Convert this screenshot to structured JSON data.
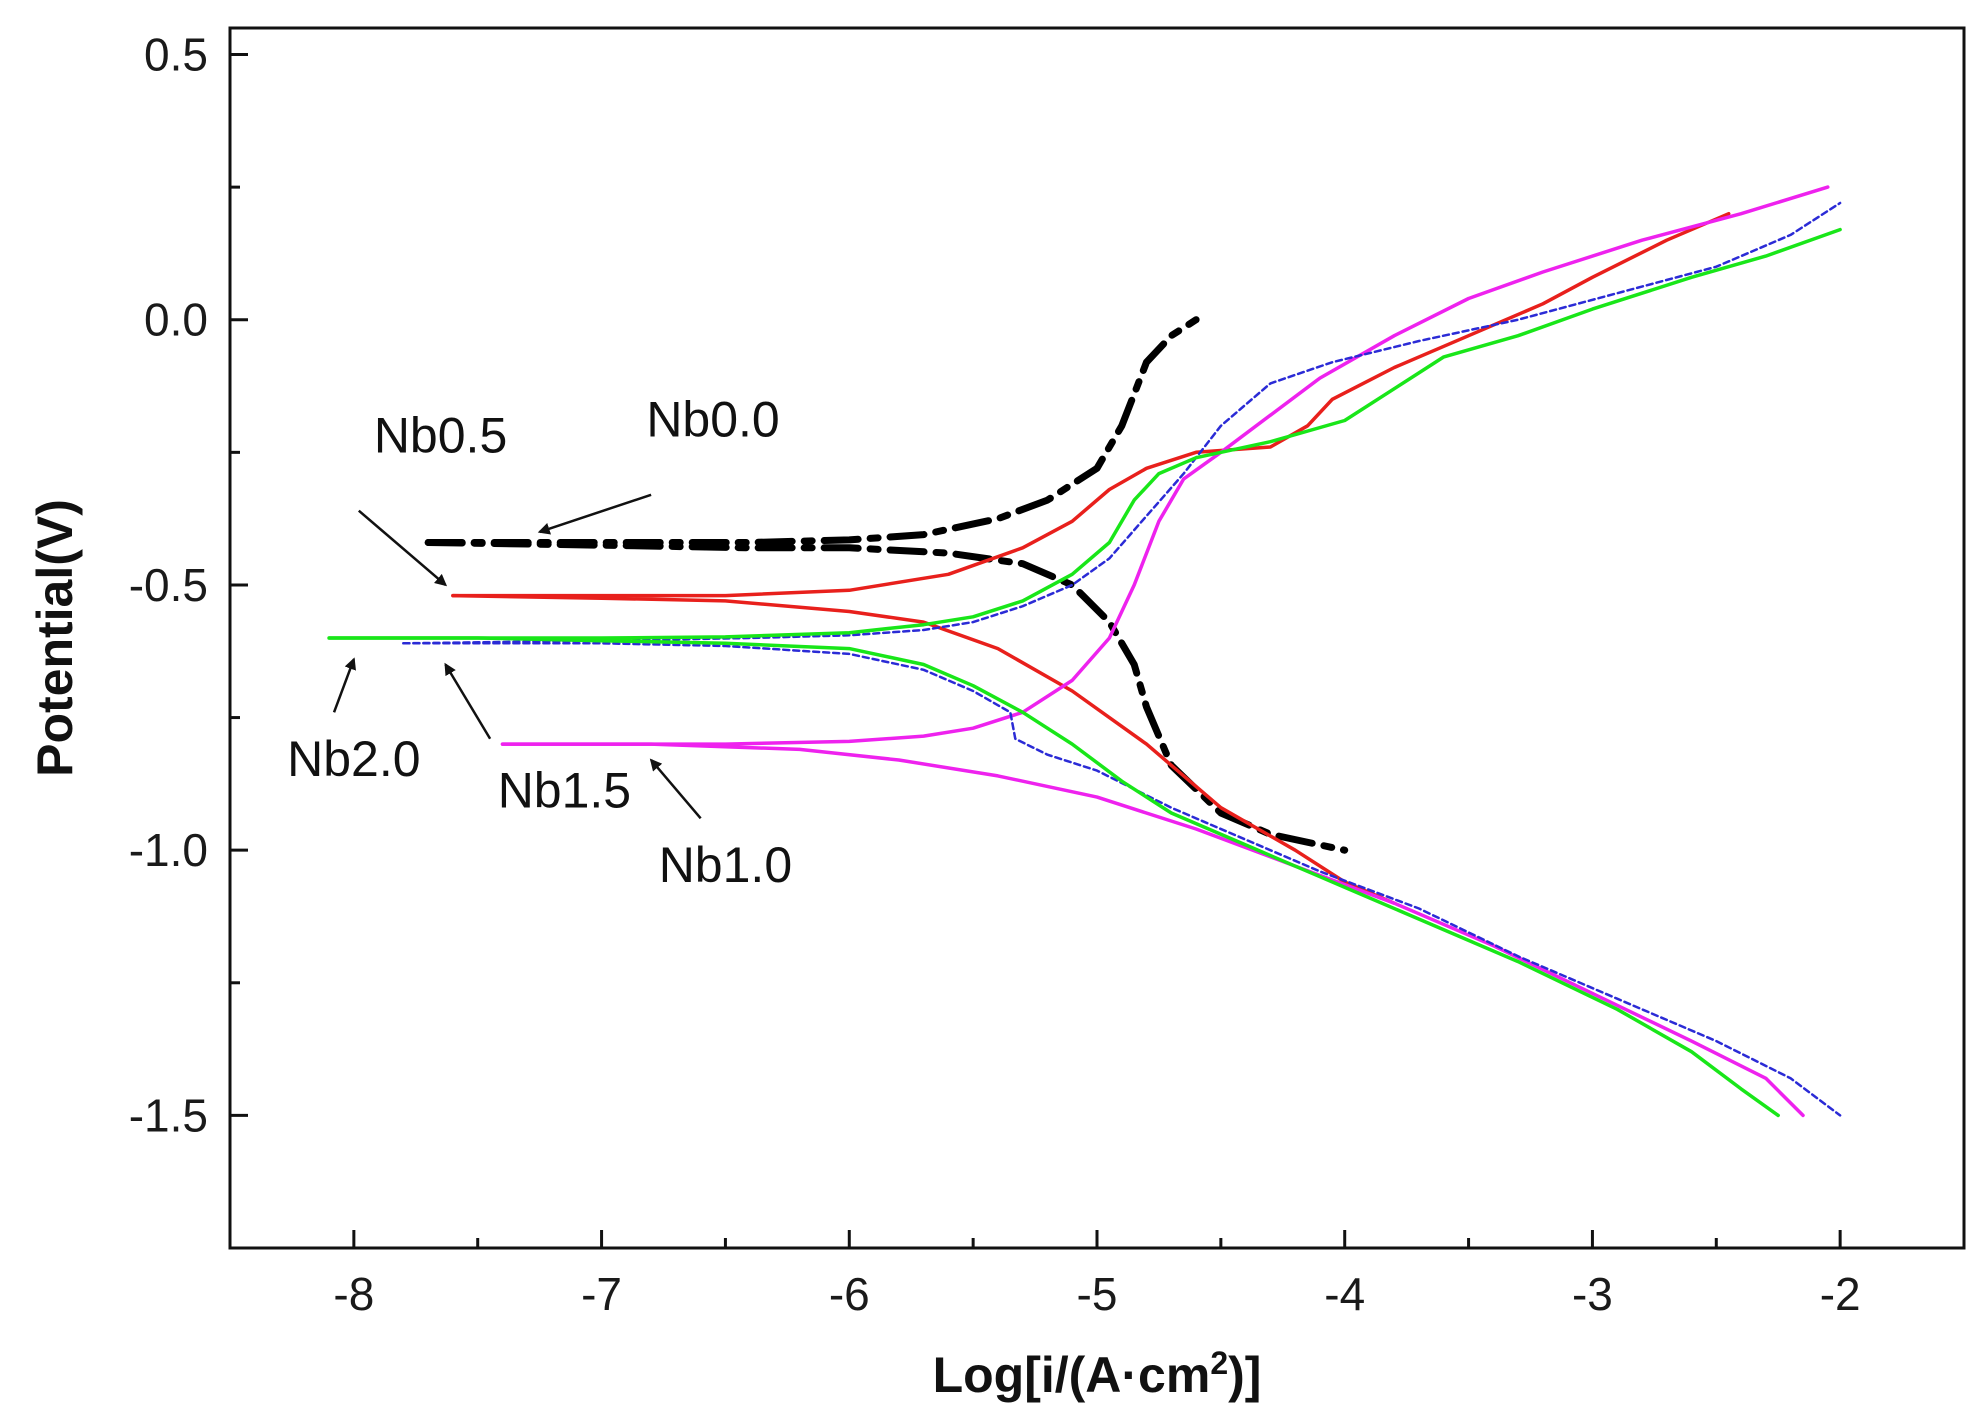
{
  "chart_data": {
    "type": "line",
    "title": "",
    "xlabel": "Log[i/(A·cm²)]",
    "ylabel": "Potential(V)",
    "xlim": [
      -8.5,
      -1.5
    ],
    "ylim": [
      -1.75,
      0.55
    ],
    "xticks": [
      -8,
      -7,
      -6,
      -5,
      -4,
      -3,
      -2
    ],
    "yticks": [
      0.5,
      0.0,
      -0.5,
      -1.0,
      -1.5
    ],
    "ytick_labels": [
      "0.5",
      "0.0",
      "-0.5",
      "-1.0",
      "-1.5"
    ],
    "grid": false,
    "series": [
      {
        "name": "Nb0.0",
        "color": "#000000",
        "style": "dash-dot",
        "anodic": [
          [
            -7.7,
            -0.42
          ],
          [
            -7.0,
            -0.42
          ],
          [
            -6.4,
            -0.42
          ],
          [
            -6.0,
            -0.415
          ],
          [
            -5.7,
            -0.405
          ],
          [
            -5.4,
            -0.375
          ],
          [
            -5.2,
            -0.34
          ],
          [
            -5.0,
            -0.28
          ],
          [
            -4.9,
            -0.2
          ],
          [
            -4.85,
            -0.14
          ],
          [
            -4.8,
            -0.08
          ],
          [
            -4.7,
            -0.03
          ],
          [
            -4.6,
            0.0
          ]
        ],
        "cathodic": [
          [
            -7.7,
            -0.42
          ],
          [
            -7.0,
            -0.425
          ],
          [
            -6.4,
            -0.43
          ],
          [
            -6.0,
            -0.43
          ],
          [
            -5.6,
            -0.44
          ],
          [
            -5.3,
            -0.46
          ],
          [
            -5.1,
            -0.5
          ],
          [
            -4.95,
            -0.57
          ],
          [
            -4.85,
            -0.65
          ],
          [
            -4.8,
            -0.73
          ],
          [
            -4.7,
            -0.84
          ],
          [
            -4.5,
            -0.93
          ],
          [
            -4.3,
            -0.97
          ],
          [
            -4.0,
            -1.0
          ]
        ]
      },
      {
        "name": "Nb0.5",
        "color": "#e8201c",
        "style": "solid",
        "anodic": [
          [
            -7.6,
            -0.52
          ],
          [
            -7.0,
            -0.52
          ],
          [
            -6.5,
            -0.52
          ],
          [
            -6.0,
            -0.51
          ],
          [
            -5.6,
            -0.48
          ],
          [
            -5.3,
            -0.43
          ],
          [
            -5.1,
            -0.38
          ],
          [
            -4.95,
            -0.32
          ],
          [
            -4.8,
            -0.28
          ],
          [
            -4.6,
            -0.25
          ],
          [
            -4.3,
            -0.24
          ],
          [
            -4.15,
            -0.2
          ],
          [
            -4.05,
            -0.15
          ],
          [
            -3.8,
            -0.09
          ],
          [
            -3.5,
            -0.03
          ],
          [
            -3.2,
            0.03
          ],
          [
            -3.0,
            0.08
          ],
          [
            -2.7,
            0.15
          ],
          [
            -2.45,
            0.2
          ]
        ],
        "cathodic": [
          [
            -7.6,
            -0.52
          ],
          [
            -7.0,
            -0.525
          ],
          [
            -6.5,
            -0.53
          ],
          [
            -6.0,
            -0.55
          ],
          [
            -5.7,
            -0.57
          ],
          [
            -5.4,
            -0.62
          ],
          [
            -5.1,
            -0.7
          ],
          [
            -4.8,
            -0.8
          ],
          [
            -4.5,
            -0.92
          ],
          [
            -4.2,
            -1.0
          ],
          [
            -4.0,
            -1.06
          ],
          [
            -3.8,
            -1.1
          ]
        ]
      },
      {
        "name": "Nb1.0",
        "color": "#ee22ee",
        "style": "solid",
        "anodic": [
          [
            -7.4,
            -0.8
          ],
          [
            -6.5,
            -0.8
          ],
          [
            -6.0,
            -0.795
          ],
          [
            -5.7,
            -0.785
          ],
          [
            -5.5,
            -0.77
          ],
          [
            -5.3,
            -0.74
          ],
          [
            -5.1,
            -0.68
          ],
          [
            -4.95,
            -0.6
          ],
          [
            -4.85,
            -0.5
          ],
          [
            -4.75,
            -0.38
          ],
          [
            -4.65,
            -0.3
          ],
          [
            -4.5,
            -0.25
          ],
          [
            -4.3,
            -0.18
          ],
          [
            -4.1,
            -0.11
          ],
          [
            -3.8,
            -0.03
          ],
          [
            -3.5,
            0.04
          ],
          [
            -3.2,
            0.09
          ],
          [
            -2.8,
            0.15
          ],
          [
            -2.4,
            0.2
          ],
          [
            -2.05,
            0.25
          ]
        ],
        "cathodic": [
          [
            -7.4,
            -0.8
          ],
          [
            -6.8,
            -0.8
          ],
          [
            -6.2,
            -0.81
          ],
          [
            -5.8,
            -0.83
          ],
          [
            -5.4,
            -0.86
          ],
          [
            -5.0,
            -0.9
          ],
          [
            -4.6,
            -0.96
          ],
          [
            -4.2,
            -1.03
          ],
          [
            -3.8,
            -1.1
          ],
          [
            -3.4,
            -1.18
          ],
          [
            -3.0,
            -1.27
          ],
          [
            -2.6,
            -1.36
          ],
          [
            -2.3,
            -1.43
          ],
          [
            -2.15,
            -1.5
          ]
        ]
      },
      {
        "name": "Nb1.5",
        "color": "#2b2bd6",
        "style": "short-dash",
        "anodic": [
          [
            -7.8,
            -0.61
          ],
          [
            -7.0,
            -0.605
          ],
          [
            -6.4,
            -0.6
          ],
          [
            -6.0,
            -0.595
          ],
          [
            -5.7,
            -0.585
          ],
          [
            -5.5,
            -0.57
          ],
          [
            -5.3,
            -0.54
          ],
          [
            -5.1,
            -0.5
          ],
          [
            -4.95,
            -0.45
          ],
          [
            -4.8,
            -0.37
          ],
          [
            -4.65,
            -0.29
          ],
          [
            -4.5,
            -0.2
          ],
          [
            -4.3,
            -0.12
          ],
          [
            -4.05,
            -0.08
          ],
          [
            -3.7,
            -0.04
          ],
          [
            -3.3,
            0.0
          ],
          [
            -2.9,
            0.05
          ],
          [
            -2.5,
            0.1
          ],
          [
            -2.2,
            0.16
          ],
          [
            -2.0,
            0.22
          ]
        ],
        "cathodic": [
          [
            -7.8,
            -0.61
          ],
          [
            -7.0,
            -0.61
          ],
          [
            -6.5,
            -0.615
          ],
          [
            -6.0,
            -0.63
          ],
          [
            -5.7,
            -0.66
          ],
          [
            -5.5,
            -0.7
          ],
          [
            -5.35,
            -0.74
          ],
          [
            -5.33,
            -0.79
          ],
          [
            -5.2,
            -0.82
          ],
          [
            -5.0,
            -0.85
          ],
          [
            -4.7,
            -0.92
          ],
          [
            -4.4,
            -0.98
          ],
          [
            -4.1,
            -1.04
          ],
          [
            -3.7,
            -1.11
          ],
          [
            -3.3,
            -1.2
          ],
          [
            -2.9,
            -1.28
          ],
          [
            -2.5,
            -1.36
          ],
          [
            -2.2,
            -1.43
          ],
          [
            -2.0,
            -1.5
          ]
        ]
      },
      {
        "name": "Nb2.0",
        "color": "#19e619",
        "style": "solid",
        "anodic": [
          [
            -8.1,
            -0.6
          ],
          [
            -7.5,
            -0.6
          ],
          [
            -7.0,
            -0.6
          ],
          [
            -6.5,
            -0.598
          ],
          [
            -6.0,
            -0.59
          ],
          [
            -5.7,
            -0.575
          ],
          [
            -5.5,
            -0.56
          ],
          [
            -5.3,
            -0.53
          ],
          [
            -5.1,
            -0.48
          ],
          [
            -4.95,
            -0.42
          ],
          [
            -4.85,
            -0.34
          ],
          [
            -4.75,
            -0.29
          ],
          [
            -4.6,
            -0.26
          ],
          [
            -4.3,
            -0.23
          ],
          [
            -4.0,
            -0.19
          ],
          [
            -3.8,
            -0.13
          ],
          [
            -3.6,
            -0.07
          ],
          [
            -3.3,
            -0.03
          ],
          [
            -3.0,
            0.02
          ],
          [
            -2.6,
            0.08
          ],
          [
            -2.3,
            0.12
          ],
          [
            -2.0,
            0.17
          ]
        ],
        "cathodic": [
          [
            -8.1,
            -0.6
          ],
          [
            -7.5,
            -0.6
          ],
          [
            -7.0,
            -0.605
          ],
          [
            -6.5,
            -0.61
          ],
          [
            -6.0,
            -0.62
          ],
          [
            -5.7,
            -0.65
          ],
          [
            -5.5,
            -0.69
          ],
          [
            -5.3,
            -0.74
          ],
          [
            -5.1,
            -0.8
          ],
          [
            -4.9,
            -0.87
          ],
          [
            -4.7,
            -0.93
          ],
          [
            -4.4,
            -0.99
          ],
          [
            -4.1,
            -1.05
          ],
          [
            -3.7,
            -1.13
          ],
          [
            -3.3,
            -1.21
          ],
          [
            -2.9,
            -1.3
          ],
          [
            -2.6,
            -1.38
          ],
          [
            -2.4,
            -1.45
          ],
          [
            -2.25,
            -1.5
          ]
        ]
      }
    ],
    "annotations": [
      {
        "text": "Nb0.0",
        "label_at": [
          -6.55,
          -0.22
        ],
        "arrow_from": [
          -6.8,
          -0.33
        ],
        "arrow_to": [
          -7.25,
          -0.4
        ]
      },
      {
        "text": "Nb0.5",
        "label_at": [
          -7.65,
          -0.25
        ],
        "arrow_from": [
          -7.98,
          -0.36
        ],
        "arrow_to": [
          -7.63,
          -0.5
        ]
      },
      {
        "text": "Nb2.0",
        "label_at": [
          -8.0,
          -0.86
        ],
        "arrow_from": [
          -8.08,
          -0.74
        ],
        "arrow_to": [
          -8.0,
          -0.64
        ]
      },
      {
        "text": "Nb1.5",
        "label_at": [
          -7.15,
          -0.92
        ],
        "arrow_from": [
          -7.45,
          -0.79
        ],
        "arrow_to": [
          -7.63,
          -0.65
        ]
      },
      {
        "text": "Nb1.0",
        "label_at": [
          -6.5,
          -1.06
        ],
        "arrow_from": [
          -6.6,
          -0.94
        ],
        "arrow_to": [
          -6.8,
          -0.83
        ]
      }
    ]
  }
}
